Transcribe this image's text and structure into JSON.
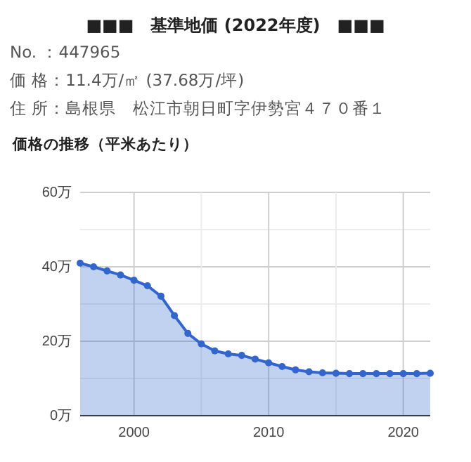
{
  "chart_data": {
    "type": "area",
    "title": "■■■　基準地価 (2022年度)　■■■",
    "subtitle": "価格の推移（平米あたり）",
    "annotations": [
      "No. ：447965",
      "価 格：11.4万/㎡ (37.68万/坪)",
      "住 所：島根県　松江市朝日町字伊勢宮４７０番１"
    ],
    "x": [
      1996,
      1997,
      1998,
      1999,
      2000,
      2001,
      2002,
      2003,
      2004,
      2005,
      2006,
      2007,
      2008,
      2009,
      2010,
      2011,
      2012,
      2013,
      2014,
      2015,
      2016,
      2017,
      2018,
      2019,
      2020,
      2021,
      2022
    ],
    "series": [
      {
        "color": "#3366cc",
        "values": [
          41.0,
          40.0,
          38.9,
          37.8,
          36.4,
          34.9,
          32.1,
          26.9,
          22.1,
          19.3,
          17.4,
          16.6,
          16.2,
          15.2,
          14.2,
          13.2,
          12.3,
          11.8,
          11.5,
          11.4,
          11.3,
          11.3,
          11.3,
          11.3,
          11.3,
          11.3,
          11.4
        ]
      }
    ],
    "xlim": [
      1996,
      2022
    ],
    "xticks": [
      2000,
      {
        "value": 2005,
        "label": null
      },
      2010,
      {
        "value": 2015,
        "label": null
      },
      2020
    ],
    "ylim": [
      0,
      60
    ],
    "yticks": [
      {
        "value": 0,
        "label": "0万"
      },
      {
        "value": 10,
        "label": null
      },
      {
        "value": 20,
        "label": "20万"
      },
      {
        "value": 30,
        "label": null
      },
      {
        "value": 40,
        "label": "40万"
      },
      {
        "value": 50,
        "label": null
      },
      {
        "value": 60,
        "label": "60万"
      }
    ],
    "grid": true,
    "marker": "circle",
    "line_style": "solid"
  }
}
